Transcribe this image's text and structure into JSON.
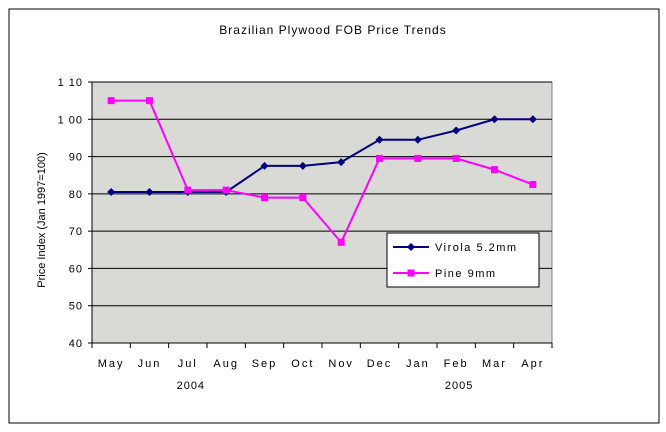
{
  "chart_data": {
    "type": "line",
    "title": "Brazilian Plywood FOB Price Trends",
    "xlabel": "",
    "ylabel": "Price Index (Jan 1997=100)",
    "categories": [
      "May",
      "Jun",
      "Jul",
      "Aug",
      "Sep",
      "Oct",
      "Nov",
      "Dec",
      "Jan",
      "Feb",
      "Mar",
      "Apr"
    ],
    "year_labels": [
      {
        "text": "2004",
        "category": "Jul"
      },
      {
        "text": "2005",
        "category": "Feb"
      }
    ],
    "ylim": [
      40,
      110
    ],
    "yticks": [
      40,
      50,
      60,
      70,
      80,
      90,
      100,
      110
    ],
    "ytick_labels": [
      "40",
      "50",
      "60",
      "70",
      "80",
      "90",
      "1 00",
      "1 10"
    ],
    "grid": true,
    "legend_position": "lower-right",
    "series": [
      {
        "name": "Virola 5.2mm",
        "color": "#000080",
        "marker": "diamond",
        "values": [
          80.5,
          80.5,
          80.5,
          80.5,
          87.5,
          87.5,
          88.5,
          94.5,
          94.5,
          97,
          100,
          100
        ]
      },
      {
        "name": "Pine 9mm",
        "color": "#FF00FF",
        "marker": "square",
        "values": [
          105,
          105,
          81,
          81,
          79,
          79,
          67,
          89.5,
          89.5,
          89.5,
          86.5,
          82.5
        ]
      }
    ]
  }
}
